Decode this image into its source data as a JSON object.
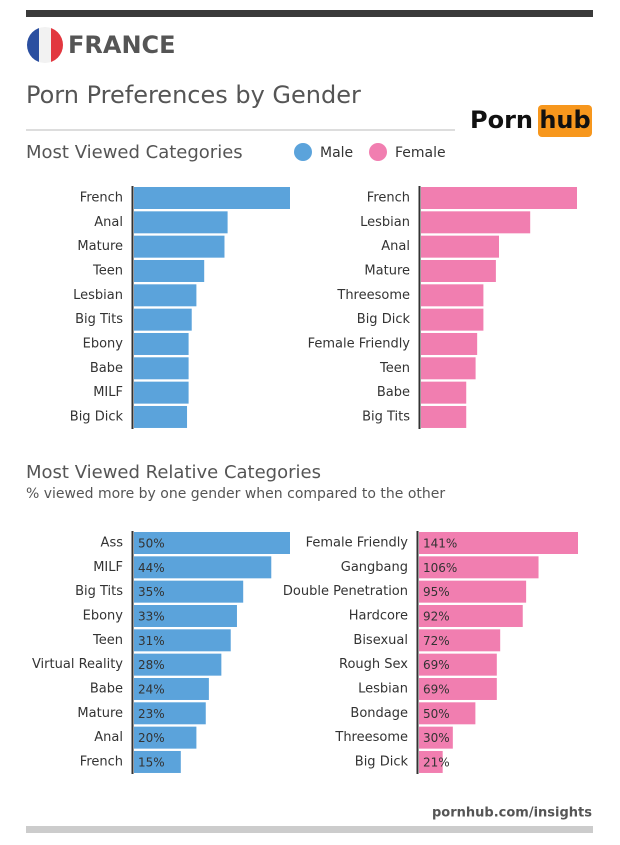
{
  "header": {
    "country": "FRANCE",
    "title": "Porn Preferences by Gender",
    "logo_left": "Porn",
    "logo_right": "hub",
    "footer": "pornhub.com/insights"
  },
  "sections": [
    {
      "title": "Most Viewed Categories"
    },
    {
      "title": "Most Viewed Relative Categories",
      "subtitle": "% viewed more by one gender when compared to the other"
    }
  ],
  "chart_data": [
    {
      "type": "bar",
      "orientation": "horizontal",
      "categories": [
        "French",
        "Anal",
        "Mature",
        "Teen",
        "Lesbian",
        "Big Tits",
        "Ebony",
        "Babe",
        "MILF",
        "Big Dick"
      ],
      "series": [
        {
          "name": "Male",
          "color": "#5ba3db",
          "values": [
            100,
            60,
            58,
            45,
            40,
            37,
            35,
            35,
            35,
            34
          ]
        }
      ]
    },
    {
      "type": "bar",
      "orientation": "horizontal",
      "categories": [
        "French",
        "Lesbian",
        "Anal",
        "Mature",
        "Threesome",
        "Big Dick",
        "Female Friendly",
        "Teen",
        "Babe",
        "Big Tits"
      ],
      "series": [
        {
          "name": "Female",
          "color": "#f17eb0",
          "values": [
            100,
            70,
            50,
            48,
            40,
            40,
            36,
            35,
            29,
            29
          ]
        }
      ]
    },
    {
      "type": "bar",
      "orientation": "horizontal",
      "categories": [
        "Ass",
        "MILF",
        "Big Tits",
        "Ebony",
        "Teen",
        "Virtual Reality",
        "Babe",
        "Mature",
        "Anal",
        "French"
      ],
      "series": [
        {
          "color": "#5ba3db",
          "values": [
            50,
            44,
            35,
            33,
            31,
            28,
            24,
            23,
            20,
            15
          ],
          "value_labels": [
            "50%",
            "44%",
            "35%",
            "33%",
            "31%",
            "28%",
            "24%",
            "23%",
            "20%",
            "15%"
          ]
        }
      ]
    },
    {
      "type": "bar",
      "orientation": "horizontal",
      "categories": [
        "Female Friendly",
        "Gangbang",
        "Double Penetration",
        "Hardcore",
        "Bisexual",
        "Rough Sex",
        "Lesbian",
        "Bondage",
        "Threesome",
        "Big Dick"
      ],
      "series": [
        {
          "color": "#f17eb0",
          "values": [
            141,
            106,
            95,
            92,
            72,
            69,
            69,
            50,
            30,
            21
          ],
          "value_labels": [
            "141%",
            "106%",
            "95%",
            "92%",
            "72%",
            "69%",
            "69%",
            "50%",
            "30%",
            "21%"
          ]
        }
      ]
    }
  ]
}
